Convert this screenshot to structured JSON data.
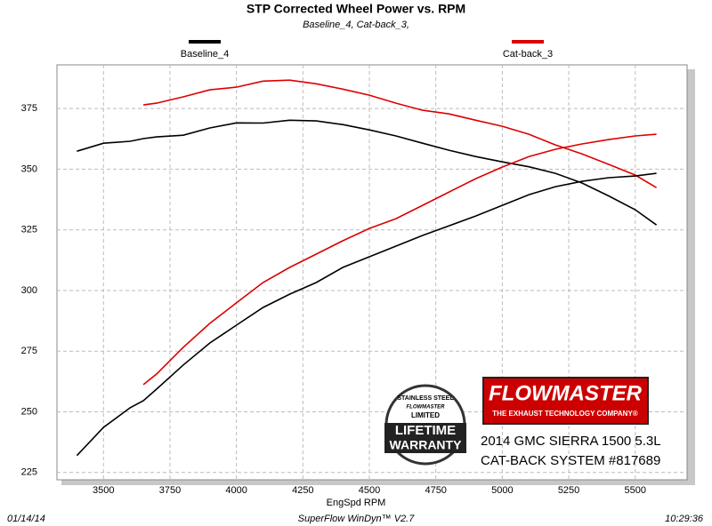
{
  "chart_data": {
    "type": "line",
    "title": "STP Corrected Wheel Power vs. RPM",
    "subtitle": "Baseline_4, Cat-back_3,",
    "x_label": "EngSpd RPM",
    "x": [
      3400,
      3500,
      3600,
      3650,
      3700,
      3800,
      3900,
      4000,
      4100,
      4200,
      4300,
      4400,
      4500,
      4600,
      4700,
      4800,
      4900,
      5000,
      5100,
      5200,
      5300,
      5400,
      5500,
      5580
    ],
    "series": [
      {
        "name": "Baseline_4",
        "color": "#000000",
        "values": [
          357.4,
          360.7,
          361.5,
          362.6,
          363.3,
          364,
          367,
          369.1,
          369,
          370.2,
          369.9,
          368.4,
          366.2,
          363.7,
          360.7,
          357.8,
          355.2,
          353,
          351,
          348.3,
          344.3,
          339,
          333.3,
          327
        ]
      },
      {
        "name": "Cat-back_3",
        "color": "#dd0000",
        "values": [
          null,
          null,
          null,
          376.5,
          377.2,
          379.8,
          382.7,
          383.8,
          386.3,
          386.7,
          385.2,
          383,
          380.5,
          377.2,
          374.3,
          372.8,
          370.2,
          367.7,
          364.4,
          360,
          356.3,
          352,
          347.6,
          342.4
        ]
      },
      {
        "color": "#000000",
        "values": [
          232,
          243.6,
          251.7,
          254.6,
          259.4,
          269.3,
          278.4,
          285.7,
          293,
          298.5,
          303.3,
          309.5,
          313.9,
          318.3,
          322.7,
          326.7,
          330.7,
          335.1,
          339.5,
          342.8,
          345,
          346.5,
          347.2,
          348.3
        ]
      },
      {
        "color": "#dd0000",
        "values": [
          null,
          null,
          null,
          261.2,
          265.6,
          276.6,
          286.5,
          294.9,
          303.3,
          309.5,
          315,
          320.5,
          325.6,
          329.6,
          335.1,
          340.6,
          346.1,
          350.9,
          355.2,
          358.2,
          360.4,
          362.2,
          363.7,
          364.4
        ]
      }
    ],
    "xlim": [
      3325,
      5695
    ],
    "ylim": [
      222,
      393
    ],
    "xticks": [
      3500,
      3750,
      4000,
      4250,
      4500,
      4750,
      5000,
      5250,
      5500
    ],
    "yticks": [
      225,
      250,
      275,
      300,
      325,
      350,
      375
    ],
    "grid": true,
    "legend": "top"
  },
  "footer": {
    "date": "01/14/14",
    "software": "SuperFlow WinDyn™ V2.7",
    "time": "10:29:36"
  },
  "branding": {
    "logo": "FLOWMASTER",
    "tagline": "THE EXHAUST TECHNOLOGY COMPANY®",
    "vehicle": "2014 GMC SIERRA 1500 5.3L",
    "system": "CAT-BACK SYSTEM #817689",
    "badge": [
      "STAINLESS STEEL",
      "FLOWMASTER",
      "LIMITED",
      "LIFETIME",
      "WARRANTY"
    ]
  }
}
